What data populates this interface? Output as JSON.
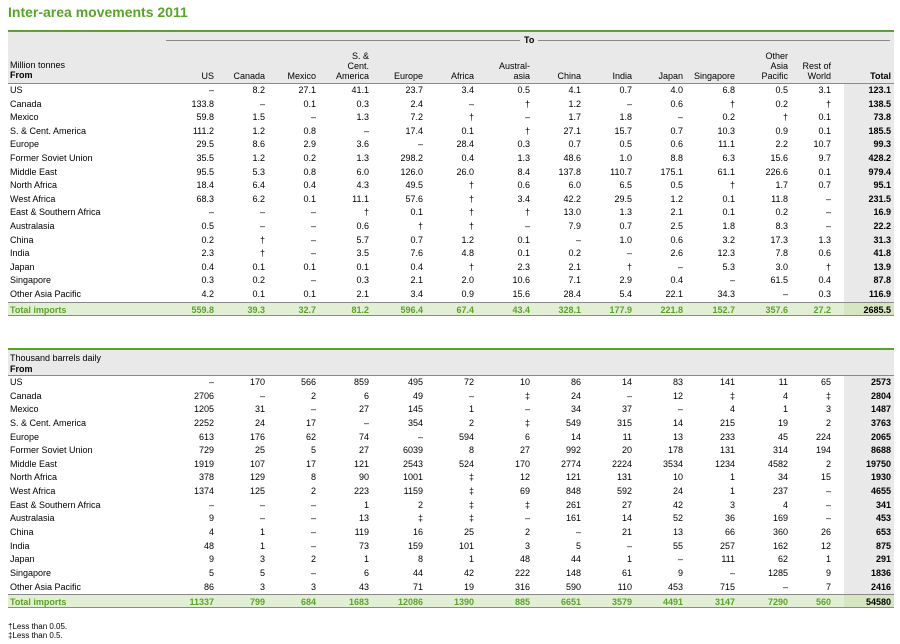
{
  "title": "Inter-area movements 2011",
  "to_label": "To",
  "notes": [
    "†Less than 0.05.",
    "‡Less than 0.5."
  ],
  "columns": [
    "US",
    "Canada",
    "Mexico",
    "S. &\nCent.\nAmerica",
    "Europe",
    "Africa",
    "Austral-\nasia",
    "China",
    "India",
    "Japan",
    "Singapore",
    "Other\nAsia\nPacific",
    "Rest of\nWorld",
    "Total"
  ],
  "tables": [
    {
      "unit": "Million tonnes",
      "from_label": "From",
      "rows": [
        {
          "label": "US",
          "values": [
            "–",
            "8.2",
            "27.1",
            "41.1",
            "23.7",
            "3.4",
            "0.5",
            "4.1",
            "0.7",
            "4.0",
            "6.8",
            "0.5",
            "3.1",
            "123.1"
          ]
        },
        {
          "label": "Canada",
          "values": [
            "133.8",
            "–",
            "0.1",
            "0.3",
            "2.4",
            "–",
            "†",
            "1.2",
            "–",
            "0.6",
            "†",
            "0.2",
            "†",
            "138.5"
          ]
        },
        {
          "label": "Mexico",
          "values": [
            "59.8",
            "1.5",
            "–",
            "1.3",
            "7.2",
            "†",
            "–",
            "1.7",
            "1.8",
            "–",
            "0.2",
            "†",
            "0.1",
            "73.8"
          ]
        },
        {
          "label": "S. & Cent. America",
          "values": [
            "111.2",
            "1.2",
            "0.8",
            "–",
            "17.4",
            "0.1",
            "†",
            "27.1",
            "15.7",
            "0.7",
            "10.3",
            "0.9",
            "0.1",
            "185.5"
          ]
        },
        {
          "label": "Europe",
          "values": [
            "29.5",
            "8.6",
            "2.9",
            "3.6",
            "–",
            "28.4",
            "0.3",
            "0.7",
            "0.5",
            "0.6",
            "11.1",
            "2.2",
            "10.7",
            "99.3"
          ]
        },
        {
          "label": "Former Soviet Union",
          "values": [
            "35.5",
            "1.2",
            "0.2",
            "1.3",
            "298.2",
            "0.4",
            "1.3",
            "48.6",
            "1.0",
            "8.8",
            "6.3",
            "15.6",
            "9.7",
            "428.2"
          ]
        },
        {
          "label": "Middle East",
          "values": [
            "95.5",
            "5.3",
            "0.8",
            "6.0",
            "126.0",
            "26.0",
            "8.4",
            "137.8",
            "110.7",
            "175.1",
            "61.1",
            "226.6",
            "0.1",
            "979.4"
          ]
        },
        {
          "label": "North Africa",
          "values": [
            "18.4",
            "6.4",
            "0.4",
            "4.3",
            "49.5",
            "†",
            "0.6",
            "6.0",
            "6.5",
            "0.5",
            "†",
            "1.7",
            "0.7",
            "95.1"
          ]
        },
        {
          "label": "West Africa",
          "values": [
            "68.3",
            "6.2",
            "0.1",
            "11.1",
            "57.6",
            "†",
            "3.4",
            "42.2",
            "29.5",
            "1.2",
            "0.1",
            "11.8",
            "–",
            "231.5"
          ]
        },
        {
          "label": "East & Southern Africa",
          "values": [
            "–",
            "–",
            "–",
            "†",
            "0.1",
            "†",
            "†",
            "13.0",
            "1.3",
            "2.1",
            "0.1",
            "0.2",
            "–",
            "16.9"
          ]
        },
        {
          "label": "Australasia",
          "values": [
            "0.5",
            "–",
            "–",
            "0.6",
            "†",
            "†",
            "–",
            "7.9",
            "0.7",
            "2.5",
            "1.8",
            "8.3",
            "–",
            "22.2"
          ]
        },
        {
          "label": "China",
          "values": [
            "0.2",
            "†",
            "–",
            "5.7",
            "0.7",
            "1.2",
            "0.1",
            "–",
            "1.0",
            "0.6",
            "3.2",
            "17.3",
            "1.3",
            "31.3"
          ]
        },
        {
          "label": "India",
          "values": [
            "2.3",
            "†",
            "–",
            "3.5",
            "7.6",
            "4.8",
            "0.1",
            "0.2",
            "–",
            "2.6",
            "12.3",
            "7.8",
            "0.6",
            "41.8"
          ]
        },
        {
          "label": "Japan",
          "values": [
            "0.4",
            "0.1",
            "0.1",
            "0.1",
            "0.4",
            "†",
            "2.3",
            "2.1",
            "†",
            "–",
            "5.3",
            "3.0",
            "†",
            "13.9"
          ]
        },
        {
          "label": "Singapore",
          "values": [
            "0.3",
            "0.2",
            "–",
            "0.3",
            "2.1",
            "2.0",
            "10.6",
            "7.1",
            "2.9",
            "0.4",
            "–",
            "61.5",
            "0.4",
            "87.8"
          ]
        },
        {
          "label": "Other Asia Pacific",
          "values": [
            "4.2",
            "0.1",
            "0.1",
            "2.1",
            "3.4",
            "0.9",
            "15.6",
            "28.4",
            "5.4",
            "22.1",
            "34.3",
            "–",
            "0.3",
            "116.9"
          ]
        }
      ],
      "total": {
        "label": "Total imports",
        "values": [
          "559.8",
          "39.3",
          "32.7",
          "81.2",
          "596.4",
          "67.4",
          "43.4",
          "328.1",
          "177.9",
          "221.8",
          "152.7",
          "357.6",
          "27.2",
          "2685.5"
        ]
      }
    },
    {
      "unit": "Thousand barrels daily",
      "from_label": "From",
      "rows": [
        {
          "label": "US",
          "values": [
            "–",
            "170",
            "566",
            "859",
            "495",
            "72",
            "10",
            "86",
            "14",
            "83",
            "141",
            "11",
            "65",
            "2573"
          ]
        },
        {
          "label": "Canada",
          "values": [
            "2706",
            "–",
            "2",
            "6",
            "49",
            "–",
            "‡",
            "24",
            "–",
            "12",
            "‡",
            "4",
            "‡",
            "2804"
          ]
        },
        {
          "label": "Mexico",
          "values": [
            "1205",
            "31",
            "–",
            "27",
            "145",
            "1",
            "–",
            "34",
            "37",
            "–",
            "4",
            "1",
            "3",
            "1487"
          ]
        },
        {
          "label": "S. & Cent. America",
          "values": [
            "2252",
            "24",
            "17",
            "–",
            "354",
            "2",
            "‡",
            "549",
            "315",
            "14",
            "215",
            "19",
            "2",
            "3763"
          ]
        },
        {
          "label": "Europe",
          "values": [
            "613",
            "176",
            "62",
            "74",
            "–",
            "594",
            "6",
            "14",
            "11",
            "13",
            "233",
            "45",
            "224",
            "2065"
          ]
        },
        {
          "label": "Former Soviet Union",
          "values": [
            "729",
            "25",
            "5",
            "27",
            "6039",
            "8",
            "27",
            "992",
            "20",
            "178",
            "131",
            "314",
            "194",
            "8688"
          ]
        },
        {
          "label": "Middle East",
          "values": [
            "1919",
            "107",
            "17",
            "121",
            "2543",
            "524",
            "170",
            "2774",
            "2224",
            "3534",
            "1234",
            "4582",
            "2",
            "19750"
          ]
        },
        {
          "label": "North Africa",
          "values": [
            "378",
            "129",
            "8",
            "90",
            "1001",
            "‡",
            "12",
            "121",
            "131",
            "10",
            "1",
            "34",
            "15",
            "1930"
          ]
        },
        {
          "label": "West Africa",
          "values": [
            "1374",
            "125",
            "2",
            "223",
            "1159",
            "‡",
            "69",
            "848",
            "592",
            "24",
            "1",
            "237",
            "–",
            "4655"
          ]
        },
        {
          "label": "East & Southern Africa",
          "values": [
            "–",
            "–",
            "–",
            "1",
            "2",
            "‡",
            "‡",
            "261",
            "27",
            "42",
            "3",
            "4",
            "–",
            "341"
          ]
        },
        {
          "label": "Australasia",
          "values": [
            "9",
            "–",
            "–",
            "13",
            "‡",
            "‡",
            "–",
            "161",
            "14",
            "52",
            "36",
            "169",
            "–",
            "453"
          ]
        },
        {
          "label": "China",
          "values": [
            "4",
            "1",
            "–",
            "119",
            "16",
            "25",
            "2",
            "–",
            "21",
            "13",
            "66",
            "360",
            "26",
            "653"
          ]
        },
        {
          "label": "India",
          "values": [
            "48",
            "1",
            "–",
            "73",
            "159",
            "101",
            "3",
            "5",
            "–",
            "55",
            "257",
            "162",
            "12",
            "875"
          ]
        },
        {
          "label": "Japan",
          "values": [
            "9",
            "3",
            "2",
            "1",
            "8",
            "1",
            "48",
            "44",
            "1",
            "–",
            "111",
            "62",
            "1",
            "291"
          ]
        },
        {
          "label": "Singapore",
          "values": [
            "5",
            "5",
            "–",
            "6",
            "44",
            "42",
            "222",
            "148",
            "61",
            "9",
            "–",
            "1285",
            "9",
            "1836"
          ]
        },
        {
          "label": "Other Asia Pacific",
          "values": [
            "86",
            "3",
            "3",
            "43",
            "71",
            "19",
            "316",
            "590",
            "110",
            "453",
            "715",
            "–",
            "7",
            "2416"
          ]
        }
      ],
      "total": {
        "label": "Total imports",
        "values": [
          "11337",
          "799",
          "684",
          "1683",
          "12086",
          "1390",
          "885",
          "6651",
          "3579",
          "4491",
          "3147",
          "7290",
          "560",
          "54580"
        ]
      }
    }
  ]
}
